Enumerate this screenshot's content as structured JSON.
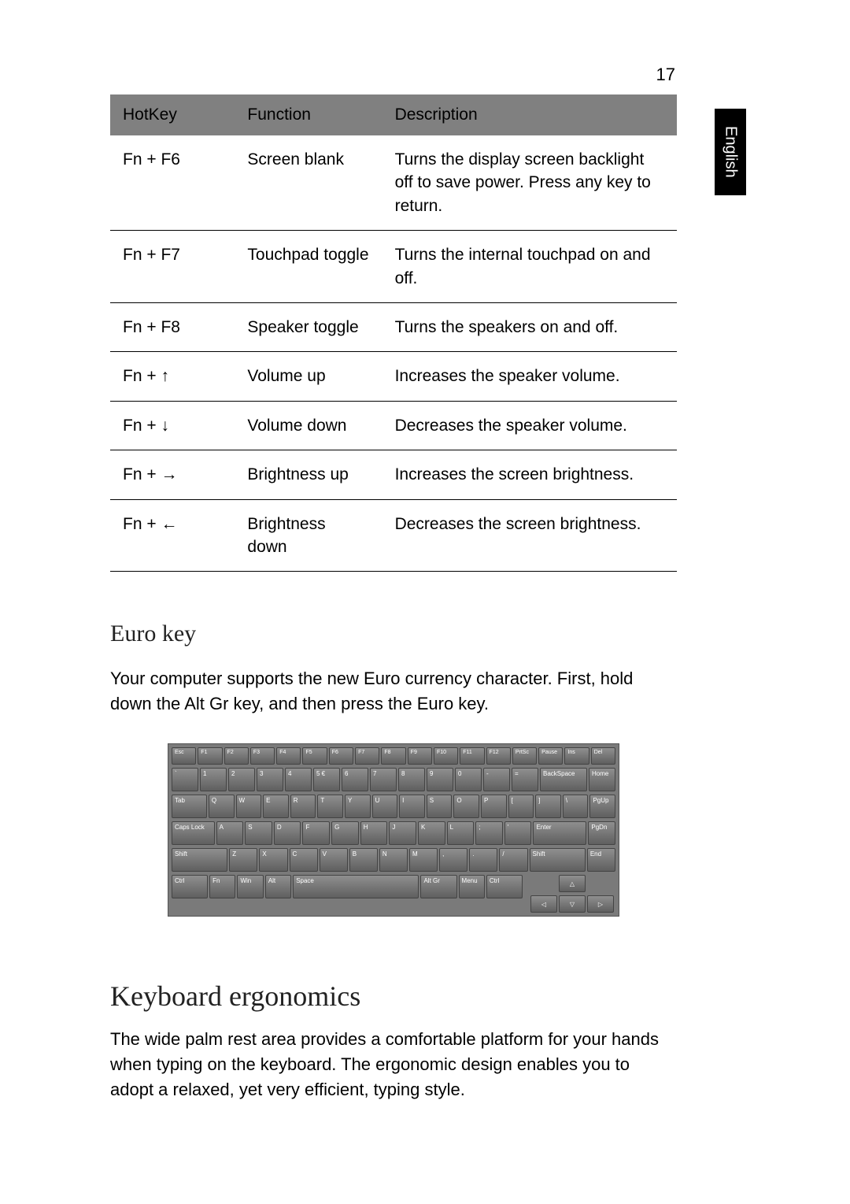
{
  "page": {
    "number": "17",
    "side_tab": "English"
  },
  "hotkey_table": {
    "headers": [
      "HotKey",
      "Function",
      "Description"
    ],
    "rows": [
      {
        "hotkey": "Fn + F6",
        "function": "Screen blank",
        "description": "Turns the display screen backlight off to save power. Press any key to return."
      },
      {
        "hotkey": "Fn + F7",
        "function": "Touchpad toggle",
        "description": "Turns the internal touchpad on and off."
      },
      {
        "hotkey": "Fn + F8",
        "function": "Speaker toggle",
        "description": "Turns the speakers on and off."
      },
      {
        "hotkey": "Fn + ↑",
        "function": "Volume up",
        "description": "Increases the speaker volume."
      },
      {
        "hotkey": "Fn + ↓",
        "function": "Volume down",
        "description": "Decreases the speaker volume."
      },
      {
        "hotkey": "Fn + →",
        "function": "Brightness up",
        "description": "Increases the screen brightness."
      },
      {
        "hotkey": "Fn + ←",
        "function": "Brightness down",
        "description": "Decreases the screen brightness."
      }
    ],
    "header_bg": "#808080",
    "border_color": "#000000",
    "font_size": 21
  },
  "euro_section": {
    "title": "Euro key",
    "body": "Your computer supports the new Euro currency character. First, hold down the Alt Gr key, and then press the Euro key."
  },
  "keyboard": {
    "bg": "#7a7a7a",
    "key_gradient_top": "#8f8f8f",
    "key_gradient_bottom": "#5f5f5f",
    "key_border": "#444444",
    "rows": {
      "r0": [
        "Esc",
        "F1",
        "F2",
        "F3",
        "F4",
        "F5",
        "F6",
        "F7",
        "F8",
        "F9",
        "F10",
        "F11",
        "F12",
        "PrtSc",
        "Pause",
        "Ins",
        "Del"
      ],
      "r1": [
        "`",
        "1",
        "2",
        "3",
        "4",
        "5 €",
        "6",
        "7",
        "8",
        "9",
        "0",
        "-",
        "=",
        "BackSpace",
        "Home"
      ],
      "r2": [
        "Tab",
        "Q",
        "W",
        "E",
        "R",
        "T",
        "Y",
        "U",
        "I",
        "S",
        "O",
        "P",
        "[",
        "]",
        "\\",
        "PgUp"
      ],
      "r3": [
        "Caps Lock",
        "A",
        "S",
        "D",
        "F",
        "G",
        "H",
        "J",
        "K",
        "L",
        ";",
        "'",
        "Enter",
        "PgDn"
      ],
      "r4": [
        "Shift",
        "Z",
        "X",
        "C",
        "V",
        "B",
        "N",
        "M",
        ",",
        ".",
        "/",
        "Shift",
        "End"
      ],
      "r5": [
        "Ctrl",
        "Fn",
        "Win",
        "Alt",
        "Space",
        "Alt Gr",
        "Menu",
        "Ctrl"
      ]
    },
    "arrows": {
      "up": "△",
      "left": "◁",
      "down": "▽",
      "right": "▷"
    }
  },
  "ergo_section": {
    "title": "Keyboard ergonomics",
    "body": "The wide palm rest area provides a comfortable platform for your hands when typing on the keyboard. The ergonomic design enables you to adopt a relaxed, yet very efficient, typing style."
  },
  "colors": {
    "page_bg": "#ffffff",
    "text": "#000000",
    "side_tab_bg": "#000000",
    "side_tab_text": "#ffffff"
  }
}
